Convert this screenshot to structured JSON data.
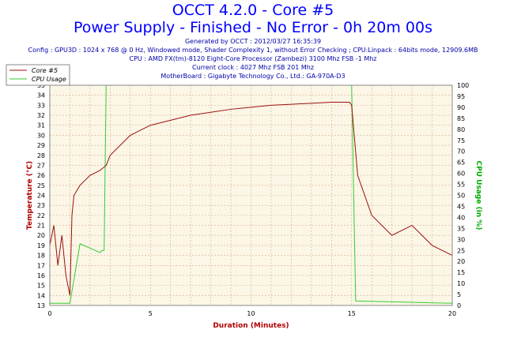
{
  "header": {
    "title": "OCCT 4.2.0 - Core #5",
    "subtitle": "Power Supply - Finished - No Error - 0h 20m 00s",
    "info_lines": [
      "Generated by OCCT : 2012/03/27 16:35:39",
      "Config : GPU3D : 1024 x 768 @ 0 Hz, Windowed mode, Shader Complexity 1, without Error Checking ; CPU:Linpack : 64bits mode, 12909.6MB",
      "CPU : AMD FX(tm)-8120 Eight-Core Processor (Zambezi) 3100 Mhz FSB -1 Mhz",
      "Current clock : 4027 Mhz FSB 201 Mhz",
      "MotherBoard : Gigabyte Technology Co., Ltd.: GA-970A-D3"
    ]
  },
  "colors": {
    "temperature": "#9b1010",
    "cpu_usage": "#33cc33",
    "plot_bg": "#fbf6e6",
    "grid": "#d9b08c",
    "title": "#0000ff",
    "info": "#0000aa"
  },
  "chart_data": {
    "type": "line",
    "xlabel": "Duration (Minutes)",
    "ylabel_left": "Temperature (°C)",
    "ylabel_right": "CPU Usage (in %)",
    "xlim": [
      0,
      20
    ],
    "ylim_left": [
      13,
      35
    ],
    "ylim_right": [
      0,
      100
    ],
    "x_ticks": [
      0,
      5,
      10,
      15,
      20
    ],
    "y_left_ticks": [
      13,
      14,
      15,
      16,
      17,
      18,
      19,
      20,
      21,
      22,
      23,
      24,
      25,
      26,
      27,
      28,
      29,
      30,
      31,
      32,
      33,
      34,
      35
    ],
    "y_right_ticks": [
      0,
      5,
      10,
      15,
      20,
      25,
      30,
      35,
      40,
      45,
      50,
      55,
      60,
      65,
      70,
      75,
      80,
      85,
      90,
      95,
      100
    ],
    "grid": true,
    "legend_position": "top-left",
    "series": [
      {
        "name": "Core #5",
        "axis": "left",
        "x": [
          0,
          0.2,
          0.4,
          0.6,
          0.8,
          1.0,
          1.1,
          1.2,
          1.5,
          2.0,
          2.5,
          2.8,
          3.0,
          3.5,
          4.0,
          5.0,
          6.0,
          7.0,
          8.0,
          9.0,
          10.0,
          11.0,
          12.0,
          13.0,
          14.0,
          14.9,
          15.0,
          15.3,
          16.0,
          17.0,
          18.0,
          19.0,
          20.0
        ],
        "values": [
          19,
          21,
          17,
          20,
          16,
          14,
          22,
          24,
          25,
          26,
          26.5,
          27,
          28,
          29,
          30,
          31,
          31.5,
          32,
          32.3,
          32.6,
          32.8,
          33,
          33.1,
          33.2,
          33.3,
          33.3,
          33,
          26,
          22,
          20,
          21,
          19,
          18
        ]
      },
      {
        "name": "CPU Usage",
        "axis": "right",
        "x": [
          0,
          1.0,
          1.5,
          2.0,
          2.5,
          2.6,
          2.7,
          2.8,
          5.0,
          10.0,
          14.9,
          15.0,
          15.2,
          20.0
        ],
        "values": [
          1,
          1,
          28,
          26,
          24,
          25,
          25,
          100,
          100,
          100,
          100,
          100,
          2,
          1
        ]
      }
    ]
  }
}
